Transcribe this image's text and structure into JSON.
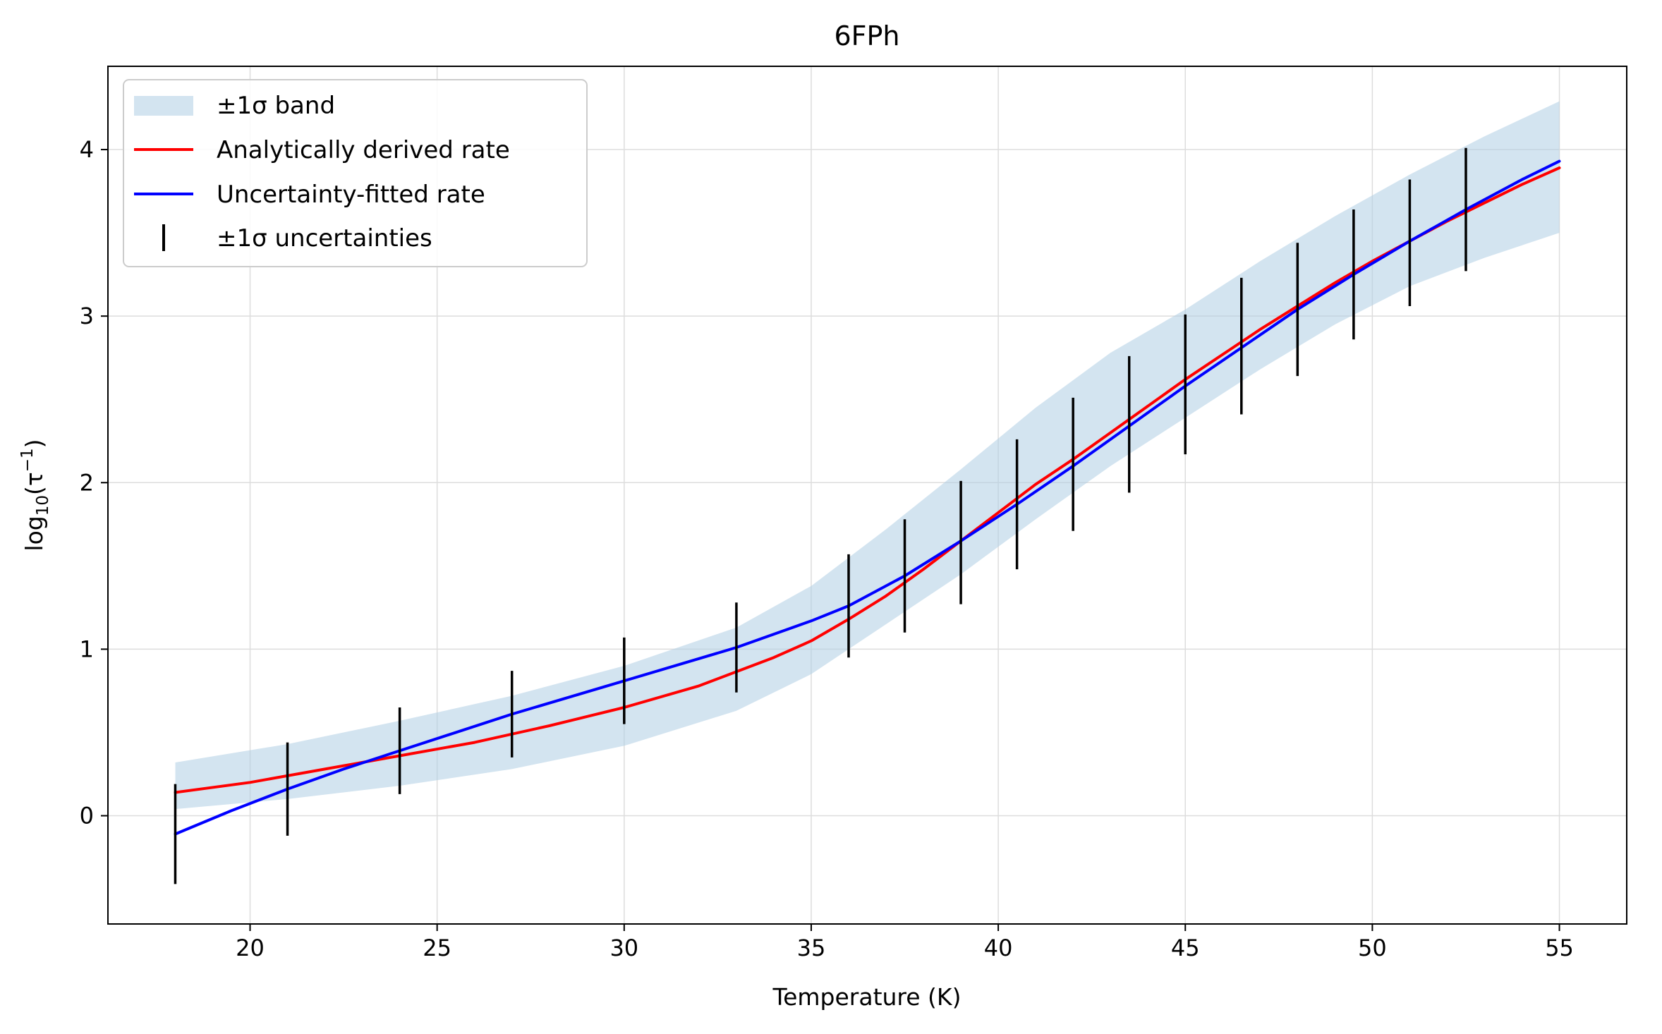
{
  "chart_data": {
    "type": "line",
    "title": "6FPh",
    "xlabel": "Temperature (K)",
    "ylabel": "log10(τ⁻¹)",
    "ylabel_parts": {
      "prefix": "log",
      "sub": "10",
      "open": "(τ",
      "sup": "−1",
      "close": ")"
    },
    "xlim": [
      16.2,
      56.8
    ],
    "ylim": [
      -0.65,
      4.5
    ],
    "xticks": [
      20,
      25,
      30,
      35,
      40,
      45,
      50,
      55
    ],
    "yticks": [
      0,
      1,
      2,
      3,
      4
    ],
    "grid": true,
    "legend_position": "top-left",
    "legend": [
      "±1σ band",
      "Analytically derived rate",
      "Uncertainty-fitted rate",
      "±1σ uncertainties"
    ],
    "colors": {
      "band": "#aecde3",
      "analytic": "#ff0000",
      "fitted": "#0000ff",
      "errorbar": "#000000"
    },
    "band": {
      "x": [
        18,
        21,
        24,
        27,
        30,
        33,
        35,
        37,
        39,
        41,
        43,
        45,
        47,
        49,
        51,
        53,
        55
      ],
      "upper": [
        0.32,
        0.43,
        0.57,
        0.72,
        0.9,
        1.13,
        1.38,
        1.72,
        2.08,
        2.45,
        2.78,
        3.04,
        3.33,
        3.6,
        3.85,
        4.08,
        4.29
      ],
      "lower": [
        0.04,
        0.1,
        0.18,
        0.28,
        0.42,
        0.63,
        0.85,
        1.15,
        1.45,
        1.78,
        2.1,
        2.39,
        2.68,
        2.95,
        3.18,
        3.35,
        3.5
      ]
    },
    "series": [
      {
        "name": "Analytically derived rate",
        "x": [
          18,
          20,
          22,
          24,
          26,
          28,
          30,
          32,
          34,
          35,
          36,
          37,
          38,
          39,
          40,
          41,
          42,
          43,
          44,
          45,
          46,
          47,
          48,
          49,
          50,
          51,
          52,
          53,
          54,
          55
        ],
        "y": [
          0.14,
          0.2,
          0.28,
          0.36,
          0.44,
          0.54,
          0.65,
          0.78,
          0.95,
          1.05,
          1.18,
          1.32,
          1.48,
          1.65,
          1.82,
          1.99,
          2.14,
          2.3,
          2.46,
          2.62,
          2.77,
          2.92,
          3.06,
          3.2,
          3.33,
          3.45,
          3.57,
          3.68,
          3.79,
          3.89
        ]
      },
      {
        "name": "Uncertainty-fitted rate",
        "x": [
          18,
          19.5,
          21,
          22.5,
          24,
          27,
          30,
          33,
          35,
          36,
          37.5,
          39,
          40.5,
          42,
          43.5,
          45,
          46.5,
          48,
          49.5,
          51,
          52.5,
          54,
          55
        ],
        "y": [
          -0.11,
          0.03,
          0.16,
          0.28,
          0.39,
          0.61,
          0.81,
          1.01,
          1.17,
          1.26,
          1.44,
          1.65,
          1.87,
          2.1,
          2.34,
          2.58,
          2.81,
          3.04,
          3.25,
          3.45,
          3.64,
          3.82,
          3.93
        ]
      }
    ],
    "errorbars": {
      "name": "±1σ uncertainties",
      "x": [
        18,
        21,
        24,
        27,
        30,
        33,
        36,
        37.5,
        39,
        40.5,
        42,
        43.5,
        45,
        46.5,
        48,
        49.5,
        51,
        52.5
      ],
      "y": [
        -0.11,
        0.16,
        0.39,
        0.61,
        0.81,
        1.01,
        1.26,
        1.44,
        1.64,
        1.87,
        2.11,
        2.35,
        2.59,
        2.82,
        3.04,
        3.25,
        3.44,
        3.64
      ],
      "err": [
        0.3,
        0.28,
        0.26,
        0.26,
        0.26,
        0.27,
        0.31,
        0.34,
        0.37,
        0.39,
        0.4,
        0.41,
        0.42,
        0.41,
        0.4,
        0.39,
        0.38,
        0.37
      ]
    }
  }
}
